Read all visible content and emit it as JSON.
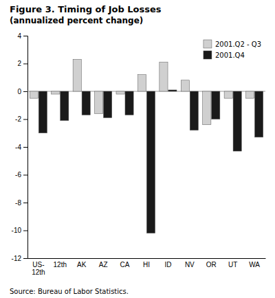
{
  "chart_data": {
    "type": "bar",
    "title": "Figure 3.  Timing of Job Losses",
    "subtitle": "(annualized percent change)",
    "source": "Source: Bureau of Labor Statistics.",
    "categories": [
      "US-\n12th",
      "12th",
      "AK",
      "AZ",
      "CA",
      "HI",
      "ID",
      "NV",
      "OR",
      "UT",
      "WA"
    ],
    "series": [
      {
        "name": "2001.Q2 - Q3",
        "color": "#d0d0d0",
        "values": [
          -0.5,
          -0.2,
          2.3,
          -1.6,
          -0.2,
          1.2,
          2.1,
          0.8,
          -2.4,
          -0.5,
          -0.5
        ]
      },
      {
        "name": "2001.Q4",
        "color": "#1a1a1a",
        "values": [
          -3.0,
          -2.1,
          -1.7,
          -1.9,
          -1.7,
          -10.2,
          0.1,
          -2.8,
          -2.0,
          -4.3,
          -3.3
        ]
      }
    ],
    "ylim": [
      -12,
      4
    ],
    "yticks": [
      4,
      2,
      0,
      -2,
      -4,
      -6,
      -8,
      -10,
      -12
    ],
    "legend": "upper right",
    "grid": false
  }
}
